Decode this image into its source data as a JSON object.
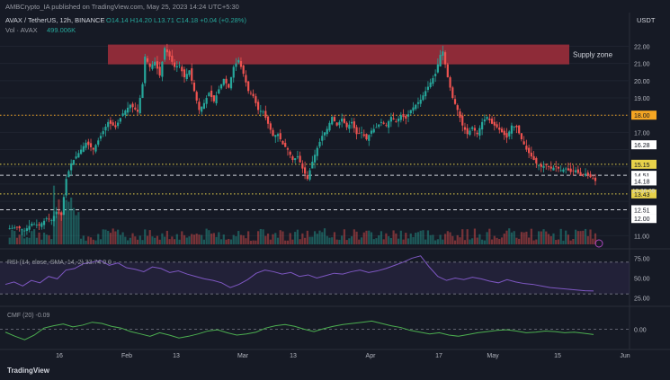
{
  "header": {
    "published_line": "AMBCrypto_IA published on TradingView.com, May 25, 2023 14:24 UTC+5:30",
    "symbol": "AVAX / TetherUS, 12h, BINANCE",
    "ohlc": "O14.14  H14.20  L13.71  C14.18  +0.04 (+0.28%)",
    "volume_label": "Vol · AVAX",
    "volume_value": "499.006K",
    "currency": "USDT"
  },
  "colors": {
    "background": "#161a25",
    "up": "#26a69a",
    "down": "#ef5350",
    "supply_zone": "#b7323f",
    "dotted_yellow": "#e8d24a",
    "dotted_orange": "#f5a623",
    "rsi_line": "#7e57c2",
    "cmf_line": "#4caf50"
  },
  "annotations": {
    "supply_zone_label": "Supply zone"
  },
  "chart_data": [
    {
      "type": "candlestick",
      "title": "AVAX / TetherUS, 12h, BINANCE",
      "y_ticks": [
        "22.00",
        "21.00",
        "20.00",
        "19.00",
        "18.00",
        "17.00",
        "16.28",
        "15.15",
        "14.51",
        "14.18",
        "13.43",
        "12.51",
        "12.00",
        "11.00"
      ],
      "highlighted_labels": [
        {
          "text": "18.00",
          "color": "#f5a623"
        },
        {
          "text": "16.28",
          "color": "#ffffff"
        },
        {
          "text": "15.15",
          "color": "#e8d24a"
        },
        {
          "text": "14.51",
          "color": "#ffffff"
        },
        {
          "text": "14.18",
          "color": "#ffffff"
        },
        {
          "text": "13.43",
          "color": "#e8d24a"
        },
        {
          "text": "12.51",
          "color": "#ffffff"
        },
        {
          "text": "12.00",
          "color": "#ffffff"
        }
      ],
      "countdown": "10:36:09",
      "x_ticks": [
        "16",
        "Feb",
        "13",
        "Mar",
        "13",
        "Apr",
        "17",
        "May",
        "15",
        "Jun"
      ],
      "ylim": [
        10.5,
        22.6
      ],
      "horizontal_levels": [
        {
          "value": 18.0,
          "style": "dotted",
          "color": "#f5a623"
        },
        {
          "value": 15.15,
          "style": "dotted",
          "color": "#e8d24a"
        },
        {
          "value": 14.51,
          "style": "dashed",
          "color": "#d1d4dc"
        },
        {
          "value": 13.43,
          "style": "dotted",
          "color": "#e8d24a"
        },
        {
          "value": 12.51,
          "style": "dashed",
          "color": "#d1d4dc"
        }
      ],
      "supply_zone": {
        "from": 20.95,
        "to": 22.1,
        "label": "Supply zone"
      },
      "close_path": [
        {
          "x": 0,
          "y": 11.4
        },
        {
          "x": 4,
          "y": 11.5
        },
        {
          "x": 7,
          "y": 11.3
        },
        {
          "x": 10,
          "y": 11.7
        },
        {
          "x": 13,
          "y": 11.6
        },
        {
          "x": 16,
          "y": 12.0
        },
        {
          "x": 18,
          "y": 11.9
        },
        {
          "x": 20,
          "y": 12.4
        },
        {
          "x": 22,
          "y": 12.2
        },
        {
          "x": 24,
          "y": 14.3
        },
        {
          "x": 26,
          "y": 15.2
        },
        {
          "x": 29,
          "y": 15.8
        },
        {
          "x": 32,
          "y": 16.4
        },
        {
          "x": 35,
          "y": 16.0
        },
        {
          "x": 38,
          "y": 16.8
        },
        {
          "x": 41,
          "y": 17.6
        },
        {
          "x": 44,
          "y": 17.3
        },
        {
          "x": 47,
          "y": 18.1
        },
        {
          "x": 50,
          "y": 18.6
        },
        {
          "x": 53,
          "y": 18.2
        },
        {
          "x": 55,
          "y": 19.8
        },
        {
          "x": 56,
          "y": 21.4
        },
        {
          "x": 58,
          "y": 20.8
        },
        {
          "x": 60,
          "y": 21.1
        },
        {
          "x": 62,
          "y": 20.3
        },
        {
          "x": 64,
          "y": 21.9
        },
        {
          "x": 66,
          "y": 21.4
        },
        {
          "x": 68,
          "y": 20.8
        },
        {
          "x": 70,
          "y": 20.9
        },
        {
          "x": 72,
          "y": 20.2
        },
        {
          "x": 74,
          "y": 20.6
        },
        {
          "x": 76,
          "y": 19.4
        },
        {
          "x": 78,
          "y": 18.3
        },
        {
          "x": 80,
          "y": 18.7
        },
        {
          "x": 82,
          "y": 19.3
        },
        {
          "x": 84,
          "y": 18.8
        },
        {
          "x": 86,
          "y": 19.5
        },
        {
          "x": 88,
          "y": 20.1
        },
        {
          "x": 90,
          "y": 19.6
        },
        {
          "x": 92,
          "y": 20.8
        },
        {
          "x": 94,
          "y": 21.2
        },
        {
          "x": 96,
          "y": 20.4
        },
        {
          "x": 98,
          "y": 19.4
        },
        {
          "x": 100,
          "y": 19.1
        },
        {
          "x": 102,
          "y": 18.3
        },
        {
          "x": 104,
          "y": 18.2
        },
        {
          "x": 106,
          "y": 17.5
        },
        {
          "x": 108,
          "y": 16.8
        },
        {
          "x": 110,
          "y": 16.9
        },
        {
          "x": 112,
          "y": 16.3
        },
        {
          "x": 114,
          "y": 16.0
        },
        {
          "x": 116,
          "y": 15.4
        },
        {
          "x": 118,
          "y": 15.6
        },
        {
          "x": 120,
          "y": 14.9
        },
        {
          "x": 122,
          "y": 14.3
        },
        {
          "x": 124,
          "y": 15.3
        },
        {
          "x": 126,
          "y": 16.1
        },
        {
          "x": 128,
          "y": 16.8
        },
        {
          "x": 130,
          "y": 17.2
        },
        {
          "x": 132,
          "y": 17.9
        },
        {
          "x": 134,
          "y": 17.4
        },
        {
          "x": 136,
          "y": 17.8
        },
        {
          "x": 138,
          "y": 17.3
        },
        {
          "x": 140,
          "y": 17.6
        },
        {
          "x": 142,
          "y": 16.9
        },
        {
          "x": 144,
          "y": 17.0
        },
        {
          "x": 146,
          "y": 16.6
        },
        {
          "x": 148,
          "y": 17.1
        },
        {
          "x": 150,
          "y": 17.3
        },
        {
          "x": 152,
          "y": 17.6
        },
        {
          "x": 154,
          "y": 17.4
        },
        {
          "x": 156,
          "y": 17.9
        },
        {
          "x": 158,
          "y": 17.6
        },
        {
          "x": 160,
          "y": 18.0
        },
        {
          "x": 162,
          "y": 17.8
        },
        {
          "x": 164,
          "y": 18.3
        },
        {
          "x": 166,
          "y": 18.6
        },
        {
          "x": 168,
          "y": 18.9
        },
        {
          "x": 170,
          "y": 19.4
        },
        {
          "x": 172,
          "y": 19.9
        },
        {
          "x": 174,
          "y": 20.4
        },
        {
          "x": 176,
          "y": 21.5
        },
        {
          "x": 177,
          "y": 21.7
        },
        {
          "x": 179,
          "y": 20.2
        },
        {
          "x": 181,
          "y": 19.0
        },
        {
          "x": 183,
          "y": 18.3
        },
        {
          "x": 185,
          "y": 17.4
        },
        {
          "x": 187,
          "y": 16.9
        },
        {
          "x": 189,
          "y": 17.3
        },
        {
          "x": 191,
          "y": 16.9
        },
        {
          "x": 193,
          "y": 17.6
        },
        {
          "x": 195,
          "y": 17.9
        },
        {
          "x": 197,
          "y": 17.5
        },
        {
          "x": 199,
          "y": 17.3
        },
        {
          "x": 201,
          "y": 17.0
        },
        {
          "x": 203,
          "y": 16.7
        },
        {
          "x": 205,
          "y": 17.4
        },
        {
          "x": 207,
          "y": 17.3
        },
        {
          "x": 209,
          "y": 16.6
        },
        {
          "x": 211,
          "y": 16.0
        },
        {
          "x": 213,
          "y": 15.6
        },
        {
          "x": 215,
          "y": 15.2
        },
        {
          "x": 217,
          "y": 15.0
        },
        {
          "x": 219,
          "y": 15.1
        },
        {
          "x": 221,
          "y": 14.9
        },
        {
          "x": 223,
          "y": 15.0
        },
        {
          "x": 225,
          "y": 14.8
        },
        {
          "x": 227,
          "y": 14.9
        },
        {
          "x": 229,
          "y": 14.7
        },
        {
          "x": 231,
          "y": 14.8
        },
        {
          "x": 233,
          "y": 14.5
        },
        {
          "x": 235,
          "y": 14.6
        },
        {
          "x": 237,
          "y": 14.4
        },
        {
          "x": 239,
          "y": 14.18
        }
      ],
      "x_max": 239,
      "pixel_note": "x is candle index on the 12h timeline"
    },
    {
      "type": "line",
      "title": "RSI 14 close SMA 14 2 33.74",
      "header_text": "RSI (14, close, SMA, 14, 2)  33.74  0  0",
      "y_ticks": [
        "75.00",
        "50.00",
        "25.00"
      ],
      "ylim": [
        20,
        80
      ],
      "bands": [
        70,
        30
      ],
      "values": [
        42,
        45,
        40,
        47,
        44,
        52,
        49,
        60,
        62,
        68,
        70,
        72,
        66,
        69,
        63,
        61,
        58,
        64,
        62,
        57,
        59,
        55,
        52,
        49,
        47,
        44,
        38,
        42,
        48,
        56,
        60,
        58,
        55,
        57,
        52,
        54,
        50,
        53,
        56,
        55,
        58,
        60,
        57,
        59,
        62,
        66,
        70,
        75,
        78,
        64,
        52,
        47,
        50,
        48,
        51,
        49,
        46,
        44,
        48,
        45,
        43,
        42,
        40,
        38,
        37,
        36,
        35,
        34,
        33.74
      ]
    },
    {
      "type": "line",
      "title": "CMF 20 -0.09",
      "header_text": "CMF (20)  -0.09",
      "y_ticks": [
        "0.00"
      ],
      "ylim": [
        -0.3,
        0.3
      ],
      "values": [
        -0.05,
        -0.12,
        -0.18,
        -0.1,
        0.02,
        0.06,
        0.09,
        0.04,
        0.07,
        0.12,
        0.1,
        0.05,
        0.02,
        -0.04,
        -0.08,
        -0.12,
        -0.06,
        -0.1,
        -0.15,
        -0.12,
        -0.08,
        -0.03,
        -0.01,
        -0.06,
        -0.1,
        -0.08,
        -0.05,
        0.02,
        0.06,
        0.08,
        0.05,
        0.0,
        -0.04,
        0.01,
        0.05,
        0.08,
        0.1,
        0.12,
        0.14,
        0.1,
        0.06,
        0.03,
        -0.02,
        -0.05,
        -0.08,
        -0.06,
        -0.1,
        -0.12,
        -0.09,
        -0.06,
        -0.04,
        -0.02,
        -0.01,
        -0.03,
        -0.06,
        -0.05,
        -0.03,
        -0.04,
        -0.06,
        -0.05,
        -0.07,
        -0.09
      ]
    }
  ],
  "footer": {
    "brand": "TradingView"
  }
}
